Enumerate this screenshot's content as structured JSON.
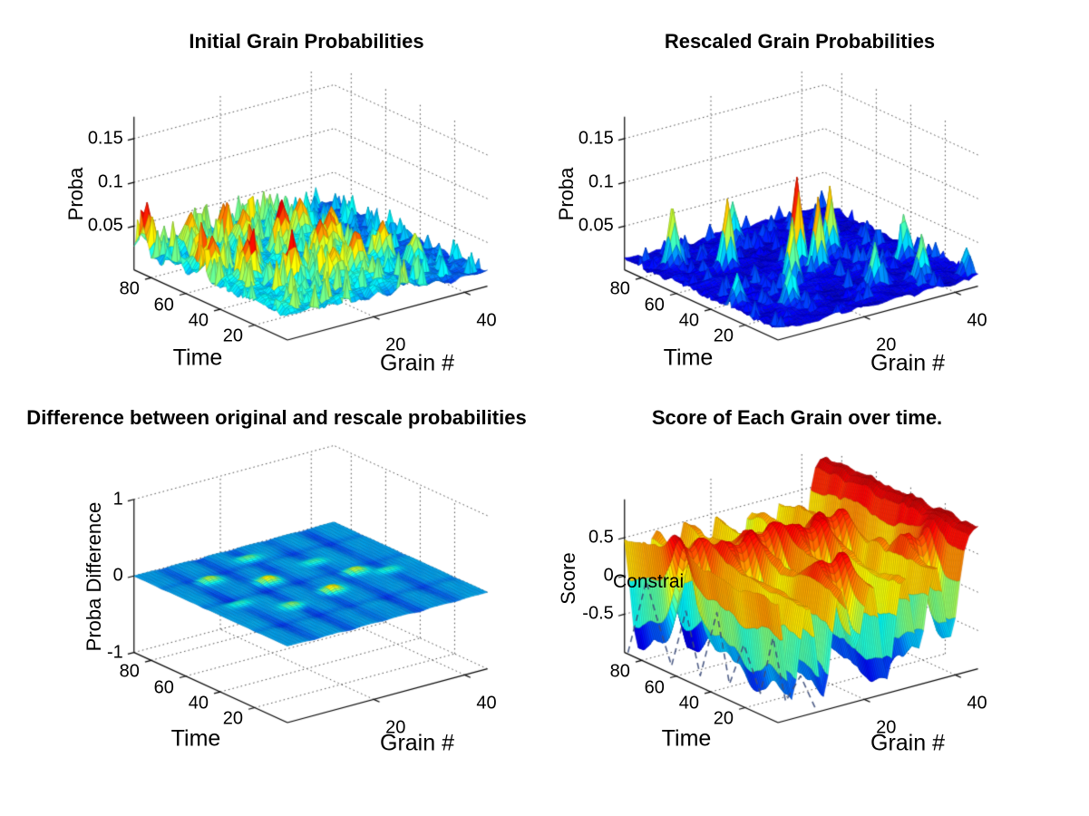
{
  "figure": {
    "background": "#ffffff"
  },
  "chart_data": [
    {
      "type": "surface3d",
      "title": "Initial Grain Probabilities",
      "xlabel": "Grain #",
      "ylabel": "Time",
      "zlabel": "Proba",
      "xticks": [
        20,
        40
      ],
      "yticks": [
        20,
        40,
        60,
        80
      ],
      "zticks": [
        0.05,
        0.1,
        0.15
      ],
      "xlim": [
        1,
        45
      ],
      "ylim": [
        1,
        90
      ],
      "zlim": [
        0,
        0.175
      ],
      "caxis": [
        0,
        0.085
      ],
      "colormap": "jet",
      "grid": "dotted",
      "view_azimuth": -37.5,
      "view_elevation": 30,
      "surface": {
        "kind": "noisy",
        "seed": 7,
        "base": 0.014,
        "noise_amp": 0.026,
        "spike_threshold": 0.9,
        "spike_amp": 0.03,
        "flatten_from_grain": 26,
        "flatten_factor": 0.55,
        "peak_sigma": [
          1.2,
          2.0
        ],
        "peaks": [
          [
            9,
            78,
            0.045
          ],
          [
            21,
            57,
            0.05
          ],
          [
            23,
            40,
            0.042
          ],
          [
            27,
            45,
            0.048
          ],
          [
            13,
            30,
            0.04
          ],
          [
            33,
            30,
            0.042
          ],
          [
            5,
            60,
            0.04
          ],
          [
            17,
            68,
            0.04
          ],
          [
            25,
            25,
            0.04
          ],
          [
            30,
            52,
            0.045
          ],
          [
            11,
            48,
            0.042
          ],
          [
            19,
            22,
            0.038
          ],
          [
            37,
            22,
            0.035
          ],
          [
            7,
            40,
            0.04
          ],
          [
            15,
            75,
            0.04
          ],
          [
            28,
            65,
            0.04
          ],
          [
            2,
            85,
            0.04
          ],
          [
            3,
            50,
            0.042
          ]
        ]
      }
    },
    {
      "type": "surface3d",
      "title": "Rescaled Grain Probabilities",
      "xlabel": "Grain #",
      "ylabel": "Time",
      "zlabel": "Proba",
      "xticks": [
        20,
        40
      ],
      "yticks": [
        20,
        40,
        60,
        80
      ],
      "zticks": [
        0.05,
        0.1,
        0.15
      ],
      "xlim": [
        1,
        45
      ],
      "ylim": [
        1,
        90
      ],
      "zlim": [
        0,
        0.175
      ],
      "caxis": [
        0,
        0.115
      ],
      "colormap": "jet",
      "grid": "dotted",
      "view_azimuth": -37.5,
      "view_elevation": 30,
      "surface": {
        "kind": "noisy",
        "seed": 17,
        "base": 0.005,
        "noise_amp": 0.014,
        "spike_threshold": 0.94,
        "spike_amp": 0.018,
        "flatten_from_grain": 45,
        "flatten_factor": 0,
        "peak_sigma": [
          0.9,
          1.5
        ],
        "peaks": [
          [
            6,
            75,
            0.065
          ],
          [
            13,
            62,
            0.08
          ],
          [
            17,
            35,
            0.07
          ],
          [
            23,
            48,
            0.105
          ],
          [
            25,
            41,
            0.085
          ],
          [
            31,
            50,
            0.075
          ],
          [
            36,
            10,
            0.045
          ],
          [
            10,
            18,
            0.045
          ],
          [
            28,
            16,
            0.05
          ],
          [
            3,
            30,
            0.035
          ],
          [
            40,
            30,
            0.04
          ],
          [
            21,
            80,
            0.045
          ],
          [
            44,
            5,
            0.03
          ]
        ]
      }
    },
    {
      "type": "surface3d",
      "title": "Difference between original and rescale probabilities",
      "xlabel": "Grain #",
      "ylabel": "Time",
      "zlabel": "Proba Difference",
      "xticks": [
        20,
        40
      ],
      "yticks": [
        20,
        40,
        60,
        80
      ],
      "zticks": [
        -1,
        0,
        1
      ],
      "xlim": [
        1,
        45
      ],
      "ylim": [
        1,
        90
      ],
      "zlim": [
        -1,
        1
      ],
      "caxis": [
        -0.05,
        0.12
      ],
      "colormap": "jet",
      "grid": "dotted",
      "view_azimuth": -37.5,
      "view_elevation": 30,
      "surface": {
        "kind": "difference",
        "seed": 27,
        "noise_amp": 0.006,
        "grain_grooves": [
          7,
          15,
          22,
          30,
          38
        ],
        "groove_depth": 0.02,
        "groove_sigma": 1.1,
        "time_grooves": [
          20,
          50,
          74
        ],
        "time_groove_depth": 0.006,
        "bump_sigma": [
          1.3,
          2.2
        ],
        "bumps": [
          [
            10,
            70,
            0.05
          ],
          [
            18,
            57,
            0.062
          ],
          [
            14,
            32,
            0.046
          ],
          [
            24,
            36,
            0.068
          ],
          [
            33,
            46,
            0.052
          ],
          [
            22,
            79,
            0.048
          ],
          [
            38,
            40,
            0.04
          ],
          [
            7,
            45,
            0.036
          ],
          [
            30,
            62,
            0.04
          ]
        ]
      }
    },
    {
      "type": "surface3d",
      "title": "Score of Each Grain over time.",
      "xlabel": "Grain #",
      "ylabel": "Time",
      "zlabel": "Score",
      "xticks": [
        20,
        40
      ],
      "yticks": [
        20,
        40,
        60,
        80
      ],
      "zticks": [
        -0.5,
        0,
        0.5
      ],
      "xlim": [
        1,
        45
      ],
      "ylim": [
        1,
        90
      ],
      "zlim": [
        -1,
        1
      ],
      "caxis": [
        -1,
        1
      ],
      "colormap": "jet",
      "grid": "dotted",
      "view_azimuth": -37.5,
      "view_elevation": 30,
      "surface": {
        "kind": "plateau",
        "seed": 37,
        "plateau_base": 0.78,
        "plateau_noise": 0.16,
        "channel_sigma": 1.7,
        "channel_depth": 2.0,
        "channels": [
          {
            "grain": 4,
            "bridges": [
              60
            ]
          },
          {
            "grain": 11,
            "bridges": [
              50
            ]
          },
          {
            "grain": 18,
            "bridges": [
              55,
              15
            ]
          },
          {
            "grain": 25,
            "bridges": [
              47
            ]
          },
          {
            "grain": 32,
            "bridges": [
              52
            ]
          },
          {
            "grain": 39,
            "bridges": [
              20
            ]
          }
        ],
        "clamp": [
          -0.985,
          0.96
        ]
      },
      "annotation": {
        "text": "Constrai",
        "color": "#000000"
      },
      "constraint_line": {
        "color": "#3c4c7a",
        "dash": [
          7,
          5
        ],
        "width": 1.6,
        "points": [
          [
            1,
            88,
            -0.98
          ],
          [
            2,
            80,
            0.02
          ],
          [
            2.5,
            74,
            -0.5
          ],
          [
            3,
            68,
            -0.98
          ],
          [
            3.5,
            61,
            -0.2
          ],
          [
            4,
            54,
            -0.98
          ],
          [
            5,
            47,
            -0.1
          ],
          [
            5.5,
            41,
            -0.98
          ],
          [
            6,
            34,
            -0.4
          ],
          [
            7,
            27,
            -0.98
          ],
          [
            7.5,
            21,
            -0.2
          ],
          [
            8,
            15,
            -0.98
          ],
          [
            9,
            9,
            -0.6
          ],
          [
            10,
            3,
            -0.98
          ]
        ]
      }
    }
  ]
}
